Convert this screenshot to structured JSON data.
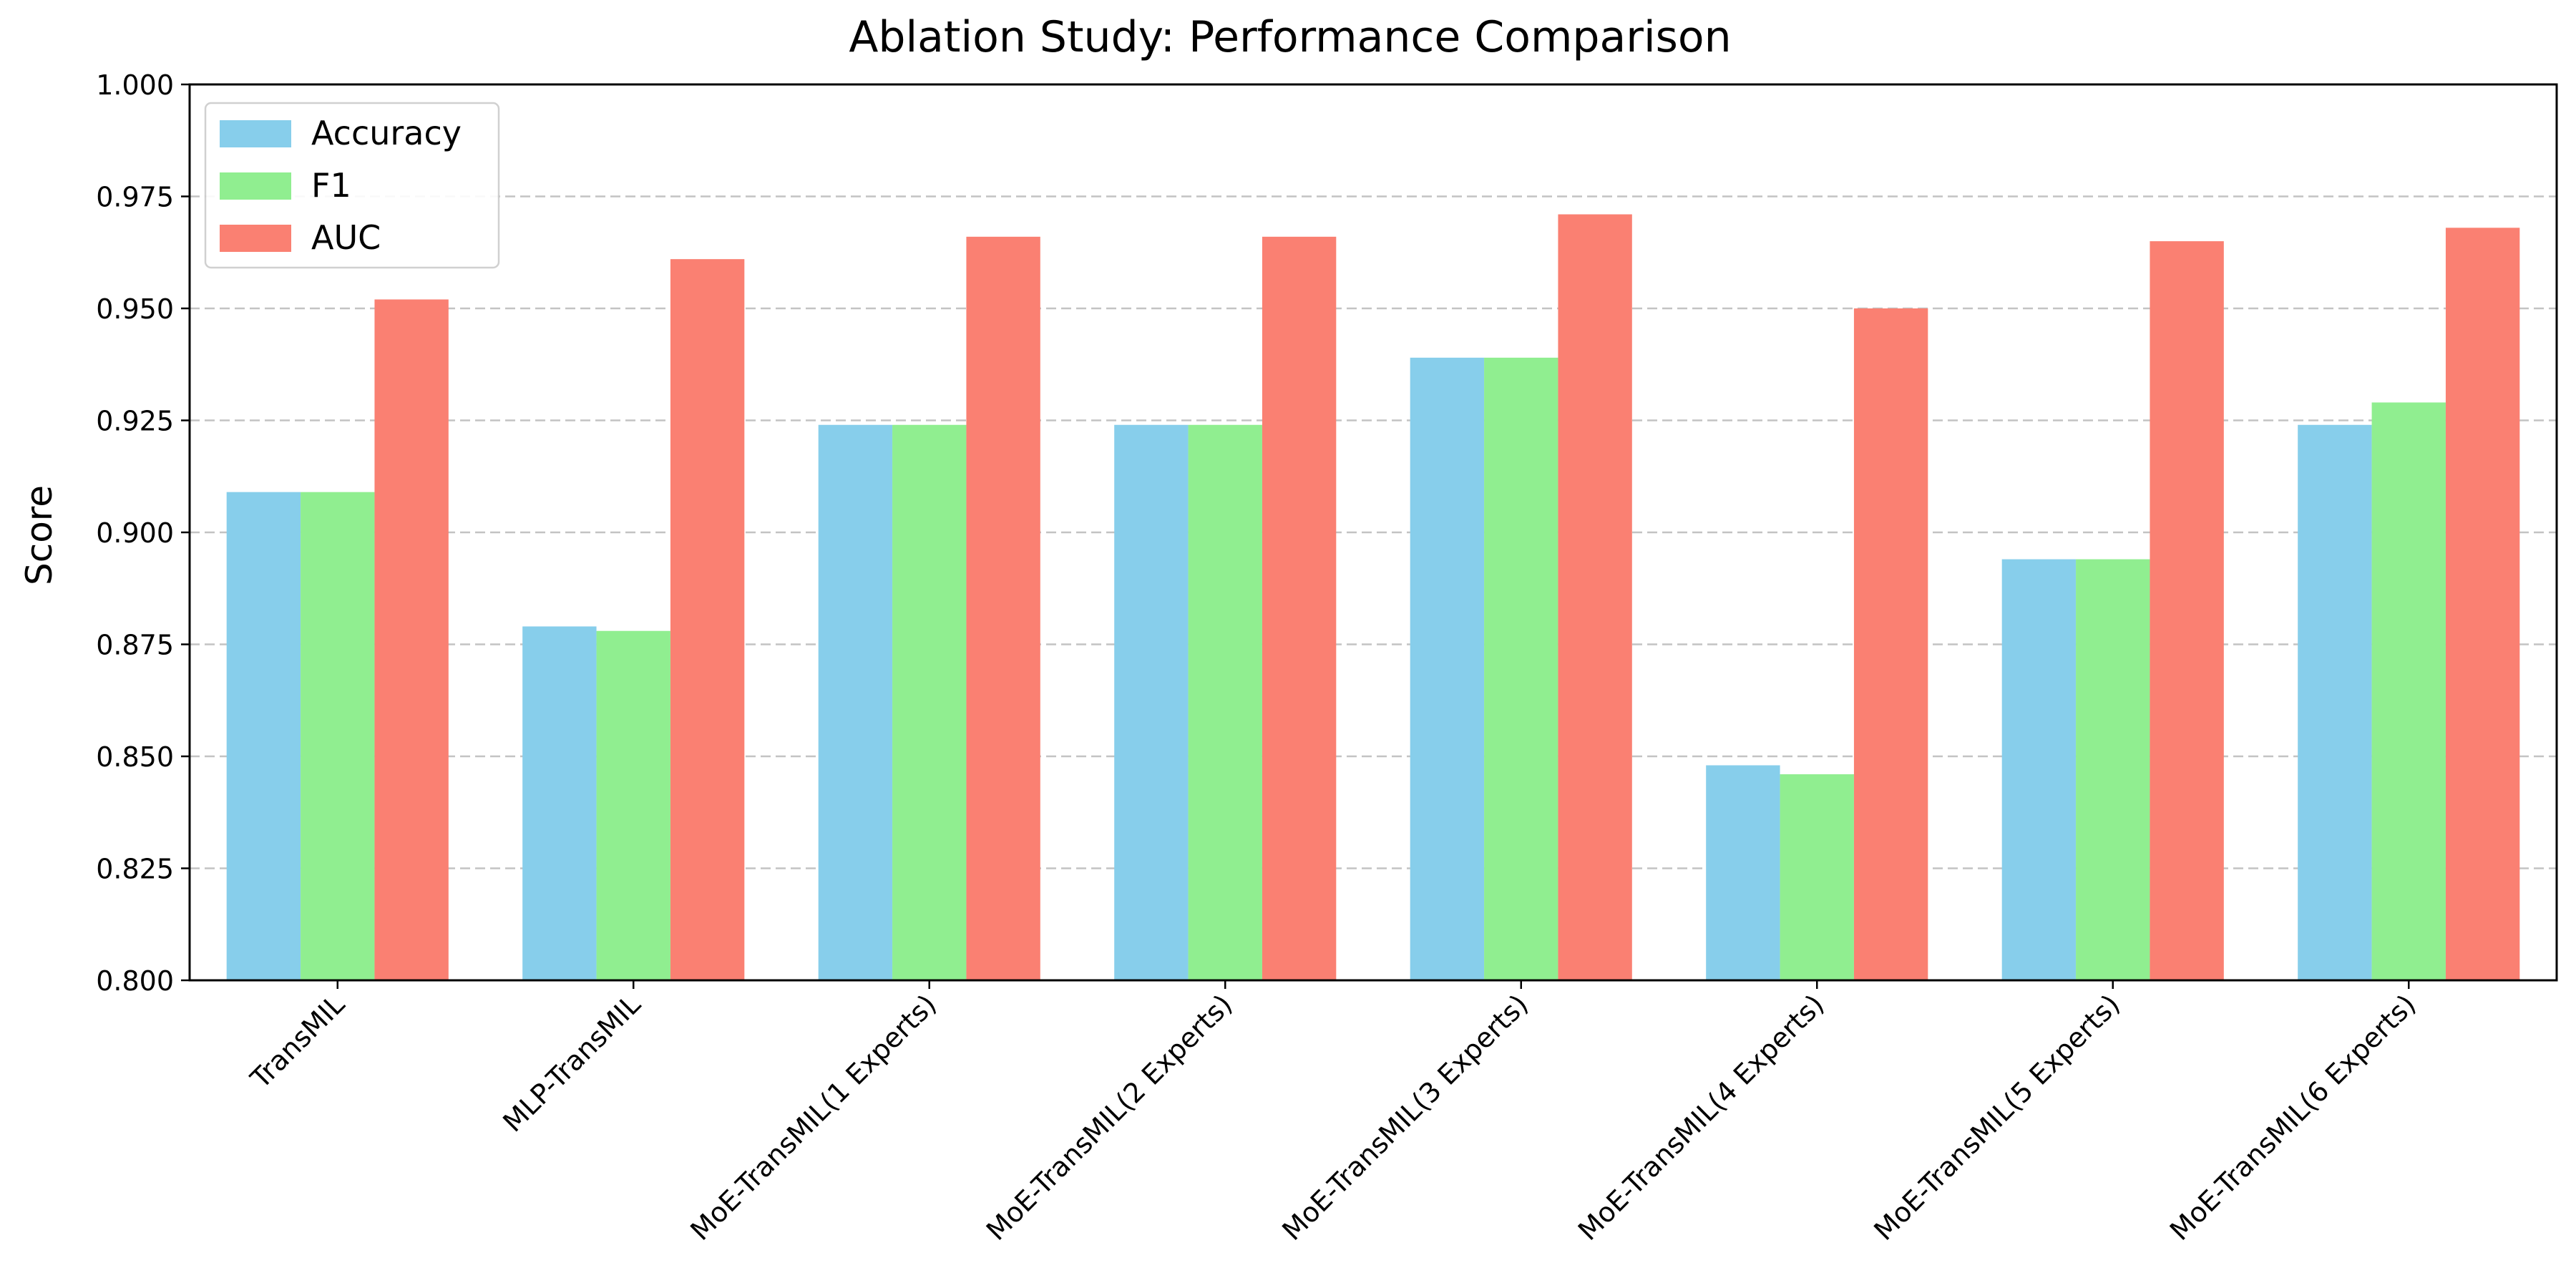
{
  "chart_data": {
    "type": "bar",
    "title": "Ablation Study: Performance Comparison",
    "xlabel": "",
    "ylabel": "Score",
    "ylim": [
      0.8,
      1.0
    ],
    "yticks": [
      "0.800",
      "0.825",
      "0.850",
      "0.875",
      "0.900",
      "0.925",
      "0.950",
      "0.975",
      "1.000"
    ],
    "grid": "y-dashed",
    "legend_position": "top-left",
    "categories": [
      "TransMIL",
      "MLP-TransMIL",
      "MoE-TransMIL(1 Experts)",
      "MoE-TransMIL(2 Experts)",
      "MoE-TransMIL(3 Experts)",
      "MoE-TransMIL(4 Experts)",
      "MoE-TransMIL(5 Experts)",
      "MoE-TransMIL(6 Experts)"
    ],
    "series": [
      {
        "name": "Accuracy",
        "color": "#87ceeb",
        "values": [
          0.909,
          0.879,
          0.924,
          0.924,
          0.939,
          0.848,
          0.894,
          0.924
        ]
      },
      {
        "name": "F1",
        "color": "#90ee90",
        "values": [
          0.909,
          0.878,
          0.924,
          0.924,
          0.939,
          0.846,
          0.894,
          0.929
        ]
      },
      {
        "name": "AUC",
        "color": "#fa8072",
        "values": [
          0.952,
          0.961,
          0.966,
          0.966,
          0.971,
          0.95,
          0.965,
          0.968
        ]
      }
    ]
  }
}
